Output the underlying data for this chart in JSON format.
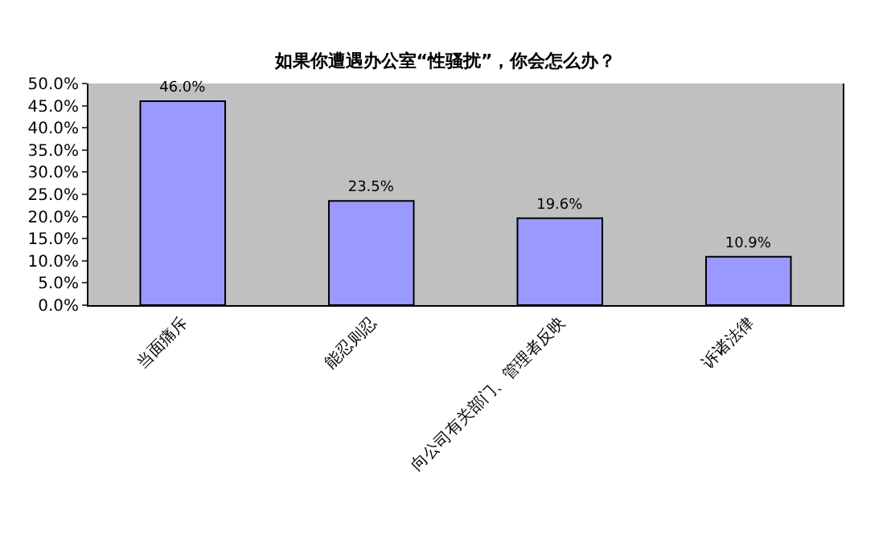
{
  "chart_data": {
    "type": "bar",
    "title": "如果你遭遇办公室“性骚扰”，你会怎么办？",
    "categories": [
      "当面痛斥",
      "能忍则忍",
      "向公司有关部门、管理者反映",
      "诉诸法律"
    ],
    "values": [
      46.0,
      23.5,
      19.6,
      10.9
    ],
    "value_labels": [
      "46.0%",
      "23.5%",
      "19.6%",
      "10.9%"
    ],
    "color": "#9999ff",
    "ylim": [
      0,
      50
    ],
    "yticks": [
      {
        "value": 0,
        "label": "0.0%"
      },
      {
        "value": 5,
        "label": "5.0%"
      },
      {
        "value": 10,
        "label": "10.0%"
      },
      {
        "value": 15,
        "label": "15.0%"
      },
      {
        "value": 20,
        "label": "20.0%"
      },
      {
        "value": 25,
        "label": "25.0%"
      },
      {
        "value": 30,
        "label": "30.0%"
      },
      {
        "value": 35,
        "label": "35.0%"
      },
      {
        "value": 40,
        "label": "40.0%"
      },
      {
        "value": 45,
        "label": "45.0%"
      },
      {
        "value": 50,
        "label": "50.0%"
      }
    ],
    "grid": false,
    "legend": false
  }
}
